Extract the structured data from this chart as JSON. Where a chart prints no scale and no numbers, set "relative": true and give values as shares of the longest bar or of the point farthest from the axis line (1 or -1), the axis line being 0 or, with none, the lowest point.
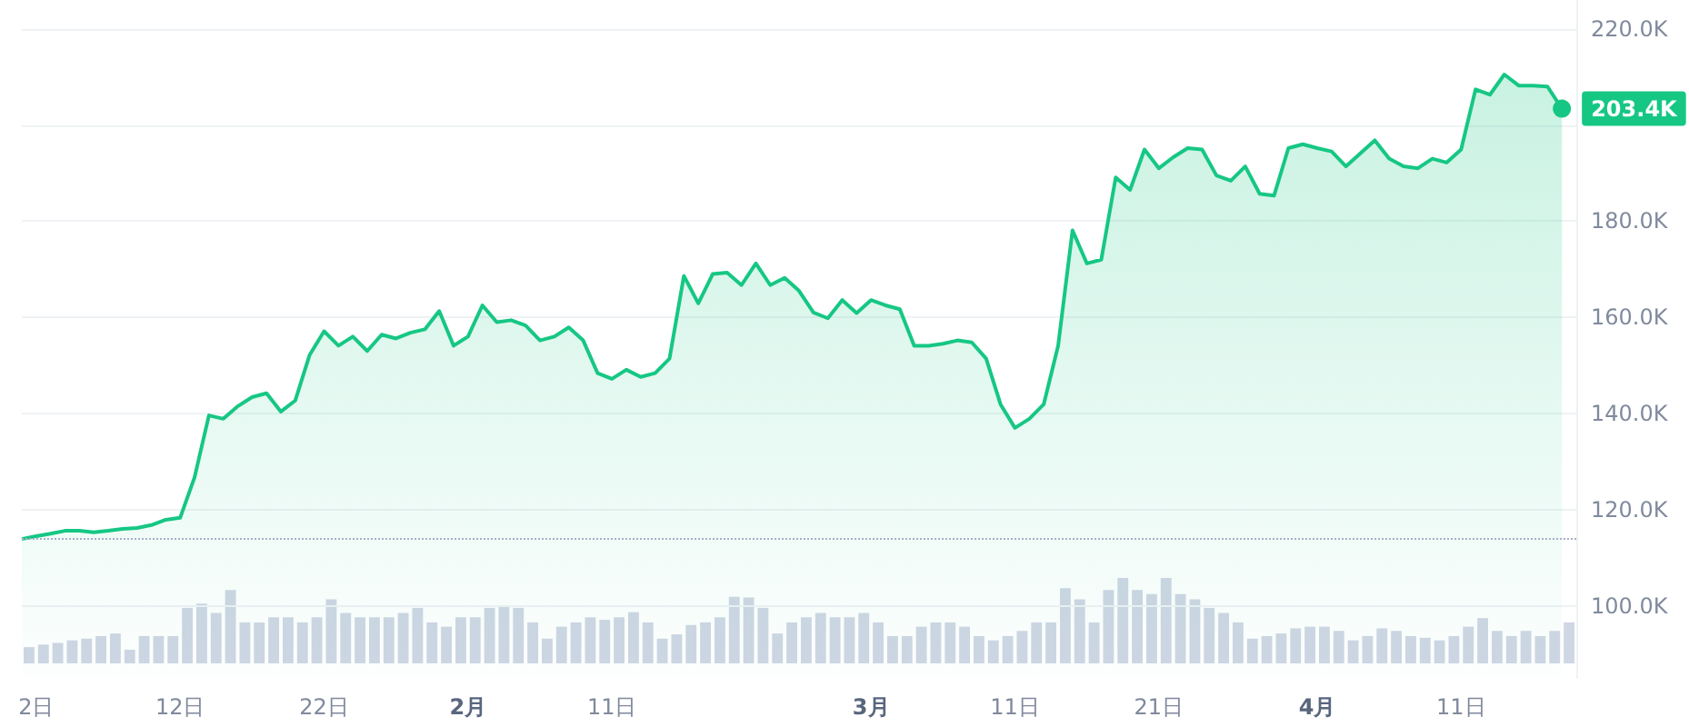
{
  "chart_data": [
    {
      "type": "area",
      "x": [
        "--01-01",
        "--01-02",
        "--01-03",
        "--01-04",
        "--01-05",
        "--01-06",
        "--01-07",
        "--01-08",
        "--01-09",
        "--01-10",
        "--01-11",
        "--01-12",
        "--01-13",
        "--01-14",
        "--01-15",
        "--01-16",
        "--01-17",
        "--01-18",
        "--01-19",
        "--01-20",
        "--01-21",
        "--01-22",
        "--01-23",
        "--01-24",
        "--01-25",
        "--01-26",
        "--01-27",
        "--01-28",
        "--01-29",
        "--01-30",
        "--01-31",
        "--02-01",
        "--02-02",
        "--02-03",
        "--02-04",
        "--02-05",
        "--02-06",
        "--02-07",
        "--02-08",
        "--02-09",
        "--02-10",
        "--02-11",
        "--02-12",
        "--02-13",
        "--02-14",
        "--02-15",
        "--02-16",
        "--02-17",
        "--02-18",
        "--02-19",
        "--02-20",
        "--02-21",
        "--02-22",
        "--02-23",
        "--02-24",
        "--02-25",
        "--02-26",
        "--02-27",
        "--02-28",
        "--03-01",
        "--03-02",
        "--03-03",
        "--03-04",
        "--03-05",
        "--03-06",
        "--03-07",
        "--03-08",
        "--03-09",
        "--03-10",
        "--03-11",
        "--03-12",
        "--03-13",
        "--03-14",
        "--03-15",
        "--03-16",
        "--03-17",
        "--03-18",
        "--03-19",
        "--03-20",
        "--03-21",
        "--03-22",
        "--03-23",
        "--03-24",
        "--03-25",
        "--03-26",
        "--03-27",
        "--03-28",
        "--03-29",
        "--03-30",
        "--03-31",
        "--04-01",
        "--04-02",
        "--04-03",
        "--04-04",
        "--04-05",
        "--04-06",
        "--04-07",
        "--04-08",
        "--04-09",
        "--04-10",
        "--04-11",
        "--04-12",
        "--04-13",
        "--04-14",
        "--04-15",
        "--04-16",
        "--04-17",
        "--04-18"
      ],
      "series": [
        {
          "color": "#16c784",
          "values": [
            113900,
            114500,
            115000,
            115600,
            115600,
            115300,
            115600,
            116000,
            116200,
            116800,
            117900,
            118300,
            126700,
            139600,
            138900,
            141500,
            143400,
            144200,
            140400,
            142700,
            152200,
            157100,
            154100,
            156000,
            153000,
            156400,
            155600,
            156800,
            157500,
            161300,
            154100,
            156000,
            162500,
            159000,
            159400,
            158300,
            155200,
            156000,
            157900,
            155200,
            148400,
            147200,
            149100,
            147600,
            148400,
            151400,
            168600,
            162900,
            169000,
            169300,
            166700,
            171200,
            166700,
            168200,
            165500,
            161000,
            159800,
            163600,
            160900,
            163600,
            162500,
            161700,
            154100,
            154100,
            154500,
            155200,
            154800,
            151400,
            141900,
            137000,
            138900,
            141900,
            154100,
            178100,
            171200,
            172000,
            189100,
            186500,
            194900,
            191000,
            193300,
            195200,
            194900,
            189500,
            188400,
            191400,
            185700,
            185300,
            195200,
            196000,
            195200,
            194500,
            191400,
            194100,
            196800,
            193000,
            191400,
            191000,
            193000,
            192200,
            194900,
            207400,
            206300,
            210500,
            208200,
            208200,
            208000,
            203400
          ]
        }
      ],
      "xlim": [
        "--01-01",
        "--04-19"
      ],
      "xticks": [
        {
          "value": "--01-02",
          "label": "2日"
        },
        {
          "value": "--01-12",
          "label": "12日"
        },
        {
          "value": "--01-22",
          "label": "22日"
        },
        {
          "value": "--02-01",
          "label": "2月"
        },
        {
          "value": "--02-11",
          "label": "11日"
        },
        {
          "value": "--03-01",
          "label": "3月"
        },
        {
          "value": "--03-11",
          "label": "11日"
        },
        {
          "value": "--03-21",
          "label": "21日"
        },
        {
          "value": "--04-01",
          "label": "4月"
        },
        {
          "value": "--04-11",
          "label": "11日"
        }
      ],
      "ylim": [
        85000,
        226000
      ],
      "yticks": [
        {
          "value": 100000,
          "label": "100.0K"
        },
        {
          "value": 120000,
          "label": "120.0K"
        },
        {
          "value": 140000,
          "label": "140.0K"
        },
        {
          "value": 160000,
          "label": "160.0K"
        },
        {
          "value": 180000,
          "label": "180.0K"
        },
        {
          "value": 200000,
          "label": null
        },
        {
          "value": 220000,
          "label": "220.0K"
        }
      ],
      "ref_lines": [
        {
          "axis": "y",
          "value": 113900,
          "color": "#a6b0c3",
          "line_style": "dotted"
        }
      ],
      "annotations": [
        {
          "text": "203.4K",
          "x": "--04-18",
          "y": 203400
        }
      ],
      "grid": "y"
    },
    {
      "type": "bar",
      "relative": true,
      "categories": [
        null,
        null,
        null,
        null,
        null,
        null,
        null,
        null,
        null,
        null,
        null,
        null,
        null,
        null,
        null,
        null,
        null,
        null,
        null,
        null,
        null,
        null,
        null,
        null,
        null,
        null,
        null,
        null,
        null,
        null,
        null,
        null,
        null,
        null,
        null,
        null,
        null,
        null,
        null,
        null,
        null,
        null,
        null,
        null,
        null,
        null,
        null,
        null,
        null,
        null,
        null,
        null,
        null,
        null,
        null,
        null,
        null,
        null,
        null,
        null,
        null,
        null,
        null,
        null,
        null,
        null,
        null,
        null,
        null,
        null,
        null,
        null,
        null,
        null,
        null,
        null,
        null,
        null,
        null,
        null,
        null,
        null,
        null,
        null,
        null,
        null,
        null,
        null,
        null,
        null,
        null,
        null,
        null,
        null,
        null,
        null,
        null,
        null,
        null,
        null,
        null,
        null,
        null,
        null,
        null,
        null,
        null,
        null
      ],
      "series": [
        {
          "color": "#cfd6e4",
          "values": [
            0.19,
            0.22,
            0.24,
            0.27,
            0.29,
            0.32,
            0.35,
            0.16,
            0.32,
            0.32,
            0.32,
            0.65,
            0.7,
            0.59,
            0.86,
            0.48,
            0.48,
            0.54,
            0.54,
            0.48,
            0.54,
            0.75,
            0.59,
            0.54,
            0.54,
            0.54,
            0.59,
            0.65,
            0.48,
            0.43,
            0.54,
            0.54,
            0.65,
            0.67,
            0.65,
            0.48,
            0.29,
            0.43,
            0.48,
            0.54,
            0.51,
            0.54,
            0.6,
            0.48,
            0.29,
            0.34,
            0.45,
            0.48,
            0.54,
            0.78,
            0.77,
            0.65,
            0.35,
            0.48,
            0.54,
            0.59,
            0.54,
            0.54,
            0.59,
            0.48,
            0.32,
            0.32,
            0.43,
            0.48,
            0.48,
            0.43,
            0.32,
            0.27,
            0.32,
            0.38,
            0.48,
            0.48,
            0.88,
            0.75,
            0.48,
            0.86,
            1,
            0.86,
            0.81,
            1,
            0.81,
            0.75,
            0.65,
            0.59,
            0.48,
            0.29,
            0.32,
            0.35,
            0.41,
            0.43,
            0.43,
            0.38,
            0.27,
            0.32,
            0.41,
            0.38,
            0.32,
            0.3,
            0.27,
            0.32,
            0.43,
            0.53,
            0.38,
            0.32,
            0.38,
            0.32,
            0.38,
            0.48
          ]
        }
      ]
    }
  ]
}
